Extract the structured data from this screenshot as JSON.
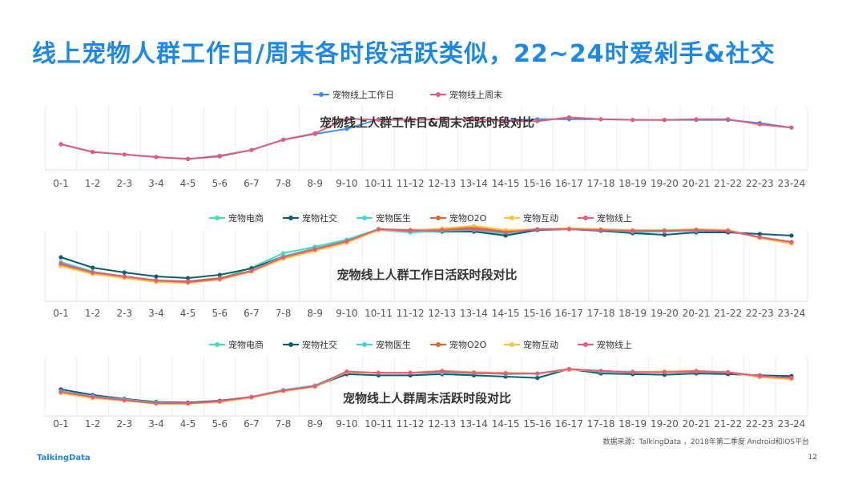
{
  "page": {
    "title": "线上宠物人群工作日/周末各时段活跃类似，22~24时爱剁手&社交",
    "source": "数据来源：TalkingData ，2018年第二季度 Android和IOS平台",
    "logo": "TalkingData",
    "page_number": "12"
  },
  "chart_data": [
    {
      "type": "line",
      "title": "宠物线上人群工作日&周末活跃时段对比",
      "categories": [
        "0-1",
        "1-2",
        "2-3",
        "3-4",
        "4-5",
        "5-6",
        "6-7",
        "7-8",
        "8-9",
        "9-10",
        "10-11",
        "11-12",
        "12-13",
        "13-14",
        "14-15",
        "15-16",
        "16-17",
        "17-18",
        "18-19",
        "19-20",
        "20-21",
        "21-22",
        "22-23",
        "23-24"
      ],
      "ylim": [
        0,
        100
      ],
      "grid": "vertical",
      "legend": "top-center",
      "series": [
        {
          "name": "宠物线上工作日",
          "color": "#3b8ee8",
          "values": [
            40,
            28,
            24,
            20,
            17,
            21,
            31,
            47,
            56,
            64,
            79,
            78,
            79,
            79,
            77,
            79,
            79,
            79,
            78,
            78,
            78,
            78,
            73,
            66
          ]
        },
        {
          "name": "宠物线上周末",
          "color": "#e65a7a",
          "values": [
            40,
            28,
            24,
            20,
            17,
            22,
            31,
            47,
            57,
            80,
            78,
            78,
            79,
            79,
            76,
            76,
            82,
            79,
            78,
            78,
            79,
            79,
            71,
            66
          ]
        }
      ]
    },
    {
      "type": "line",
      "title": "宠物线上人群工作日活跃时段对比",
      "categories": [
        "0-1",
        "1-2",
        "2-3",
        "3-4",
        "4-5",
        "5-6",
        "6-7",
        "7-8",
        "8-9",
        "9-10",
        "10-11",
        "11-12",
        "12-13",
        "13-14",
        "14-15",
        "15-16",
        "16-17",
        "17-18",
        "18-19",
        "19-20",
        "20-21",
        "21-22",
        "22-23",
        "23-24"
      ],
      "ylim": [
        0,
        100
      ],
      "grid": "vertical",
      "legend": "top-center",
      "series": [
        {
          "name": "宠物电商",
          "color": "#3ee0b0",
          "values": [
            46,
            35,
            30,
            25,
            23,
            28,
            42,
            60,
            68,
            77,
            90,
            86,
            88,
            88,
            84,
            90,
            90,
            88,
            86,
            87,
            88,
            88,
            80,
            72
          ]
        },
        {
          "name": "宠物社交",
          "color": "#0d5e72",
          "values": [
            55,
            42,
            36,
            31,
            29,
            33,
            41,
            56,
            66,
            74,
            90,
            87,
            87,
            87,
            82,
            89,
            90,
            88,
            85,
            83,
            86,
            86,
            84,
            82
          ]
        },
        {
          "name": "宠物医生",
          "color": "#3fd4e0",
          "values": [
            49,
            37,
            31,
            26,
            24,
            28,
            38,
            56,
            66,
            76,
            89,
            86,
            88,
            89,
            86,
            90,
            90,
            89,
            87,
            87,
            88,
            88,
            80,
            74
          ]
        },
        {
          "name": "宠物O2O",
          "color": "#d9692a",
          "values": [
            46,
            36,
            31,
            26,
            25,
            29,
            38,
            54,
            64,
            74,
            90,
            89,
            90,
            92,
            87,
            90,
            91,
            90,
            88,
            88,
            89,
            88,
            80,
            74
          ]
        },
        {
          "name": "宠物互动",
          "color": "#f6c33a",
          "values": [
            44,
            34,
            29,
            24,
            23,
            27,
            37,
            53,
            63,
            73,
            89,
            88,
            91,
            94,
            89,
            90,
            91,
            90,
            89,
            89,
            90,
            89,
            79,
            72
          ]
        },
        {
          "name": "宠物线上",
          "color": "#e65a7a",
          "values": [
            47,
            36,
            31,
            26,
            24,
            28,
            38,
            55,
            65,
            75,
            90,
            88,
            89,
            90,
            86,
            90,
            90,
            89,
            88,
            88,
            89,
            88,
            80,
            74
          ]
        }
      ]
    },
    {
      "type": "line",
      "title": "宠物线上人群周末活跃时段对比",
      "categories": [
        "0-1",
        "1-2",
        "2-3",
        "3-4",
        "4-5",
        "5-6",
        "6-7",
        "7-8",
        "8-9",
        "9-10",
        "10-11",
        "11-12",
        "12-13",
        "13-14",
        "14-15",
        "15-16",
        "16-17",
        "17-18",
        "18-19",
        "19-20",
        "20-21",
        "21-22",
        "22-23",
        "23-24"
      ],
      "ylim": [
        0,
        100
      ],
      "grid": "vertical",
      "legend": "top-center",
      "series": [
        {
          "name": "宠物电商",
          "color": "#3ee0b0",
          "values": [
            38,
            30,
            25,
            21,
            20,
            23,
            30,
            41,
            48,
            70,
            68,
            68,
            69,
            67,
            67,
            67,
            74,
            70,
            70,
            69,
            70,
            69,
            63,
            60
          ]
        },
        {
          "name": "宠物社交",
          "color": "#0d5e72",
          "values": [
            42,
            33,
            27,
            22,
            21,
            24,
            30,
            40,
            47,
            66,
            64,
            64,
            66,
            64,
            62,
            60,
            74,
            67,
            66,
            65,
            67,
            66,
            64,
            63
          ]
        },
        {
          "name": "宠物医生",
          "color": "#3fd4e0",
          "values": [
            39,
            31,
            26,
            21,
            20,
            23,
            30,
            41,
            48,
            69,
            68,
            68,
            68,
            68,
            66,
            67,
            74,
            70,
            69,
            69,
            70,
            69,
            63,
            60
          ]
        },
        {
          "name": "宠物O2O",
          "color": "#d9692a",
          "values": [
            37,
            29,
            25,
            20,
            20,
            23,
            29,
            40,
            47,
            69,
            68,
            68,
            71,
            69,
            68,
            67,
            73,
            71,
            69,
            70,
            71,
            69,
            62,
            60
          ]
        },
        {
          "name": "宠物互动",
          "color": "#f6c33a",
          "values": [
            36,
            28,
            24,
            19,
            19,
            22,
            29,
            39,
            46,
            69,
            68,
            68,
            70,
            69,
            68,
            67,
            73,
            71,
            69,
            70,
            70,
            69,
            61,
            58
          ]
        },
        {
          "name": "宠物线上",
          "color": "#e65a7a",
          "values": [
            38,
            30,
            25,
            20,
            20,
            23,
            30,
            40,
            47,
            70,
            68,
            68,
            70,
            68,
            67,
            67,
            74,
            71,
            69,
            69,
            70,
            69,
            63,
            60
          ]
        }
      ]
    }
  ]
}
